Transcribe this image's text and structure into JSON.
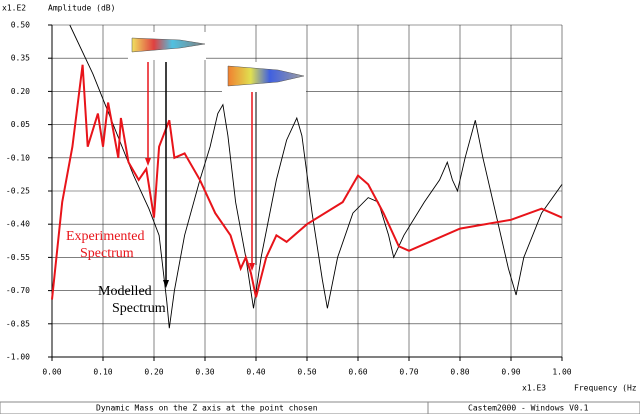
{
  "chart_data": {
    "type": "line",
    "y_unit_label": "x1.E2",
    "y_label": "Amplitude (dB)",
    "x_unit_label": "x1.E3",
    "x_label": "Frequency (Hz",
    "xlim": [
      0,
      1
    ],
    "ylim": [
      -1,
      0.5
    ],
    "xticks": [
      {
        "value": 0,
        "label": "0.00"
      },
      {
        "value": 0.1,
        "label": "0.10"
      },
      {
        "value": 0.2,
        "label": "0.20"
      },
      {
        "value": 0.3,
        "label": "0.30"
      },
      {
        "value": 0.4,
        "label": "0.40"
      },
      {
        "value": 0.5,
        "label": "0.50"
      },
      {
        "value": 0.6,
        "label": "0.60"
      },
      {
        "value": 0.7,
        "label": "0.70"
      },
      {
        "value": 0.8,
        "label": "0.80"
      },
      {
        "value": 0.9,
        "label": "0.90"
      },
      {
        "value": 1,
        "label": "1.00"
      }
    ],
    "yticks": [
      {
        "value": 0.5,
        "label": "0.50"
      },
      0.35,
      {
        "value": 0.2,
        "label": "0.20"
      },
      0.05,
      {
        "value": -0.1,
        "label": "-0.10"
      },
      -0.25,
      {
        "value": -0.4,
        "label": "-0.40"
      },
      -0.55,
      {
        "value": -0.7,
        "label": "-0.70"
      },
      -0.85,
      {
        "value": -1,
        "label": "-1.00"
      }
    ],
    "grid": true,
    "series": [
      {
        "name": "Modelled Spectrum",
        "color": "#000000",
        "x": [
          0.035,
          0.08,
          0.12,
          0.16,
          0.19,
          0.21,
          0.225,
          0.23,
          0.24,
          0.26,
          0.29,
          0.31,
          0.325,
          0.335,
          0.345,
          0.36,
          0.38,
          0.395,
          0.41,
          0.44,
          0.46,
          0.48,
          0.49,
          0.51,
          0.53,
          0.54,
          0.56,
          0.59,
          0.62,
          0.64,
          0.66,
          0.67,
          0.69,
          0.73,
          0.76,
          0.775,
          0.785,
          0.795,
          0.81,
          0.83,
          0.845,
          0.87,
          0.895,
          0.91,
          0.925,
          0.96,
          1.0
        ],
        "values": [
          0.5,
          0.28,
          0.05,
          -0.18,
          -0.33,
          -0.45,
          -0.75,
          -0.87,
          -0.7,
          -0.45,
          -0.2,
          -0.05,
          0.1,
          0.14,
          0.0,
          -0.3,
          -0.55,
          -0.78,
          -0.55,
          -0.2,
          -0.02,
          0.08,
          0.0,
          -0.35,
          -0.65,
          -0.78,
          -0.55,
          -0.35,
          -0.28,
          -0.3,
          -0.45,
          -0.55,
          -0.45,
          -0.3,
          -0.2,
          -0.12,
          -0.2,
          -0.25,
          -0.1,
          0.07,
          -0.1,
          -0.35,
          -0.6,
          -0.72,
          -0.55,
          -0.35,
          -0.22
        ]
      },
      {
        "name": "Experimented Spectrum",
        "color": "#e8141a",
        "x": [
          0.0,
          0.02,
          0.04,
          0.06,
          0.07,
          0.09,
          0.1,
          0.11,
          0.13,
          0.135,
          0.15,
          0.17,
          0.185,
          0.2,
          0.21,
          0.23,
          0.24,
          0.26,
          0.29,
          0.32,
          0.35,
          0.37,
          0.38,
          0.39,
          0.4,
          0.42,
          0.44,
          0.46,
          0.5,
          0.57,
          0.6,
          0.62,
          0.65,
          0.68,
          0.7,
          0.74,
          0.8,
          0.9,
          0.96,
          1.0
        ],
        "values": [
          -0.74,
          -0.3,
          -0.05,
          0.32,
          -0.05,
          0.1,
          -0.05,
          0.15,
          -0.1,
          0.08,
          -0.12,
          -0.2,
          -0.15,
          -0.37,
          -0.05,
          0.07,
          -0.1,
          -0.08,
          -0.2,
          -0.35,
          -0.45,
          -0.6,
          -0.55,
          -0.62,
          -0.73,
          -0.55,
          -0.45,
          -0.48,
          -0.4,
          -0.3,
          -0.18,
          -0.22,
          -0.35,
          -0.5,
          -0.52,
          -0.48,
          -0.42,
          -0.38,
          -0.33,
          -0.37
        ]
      }
    ],
    "status_left": "Dynamic Mass on the Z axis at the point chosen",
    "status_right": "Castem2000 - Windows  V0.1"
  }
}
